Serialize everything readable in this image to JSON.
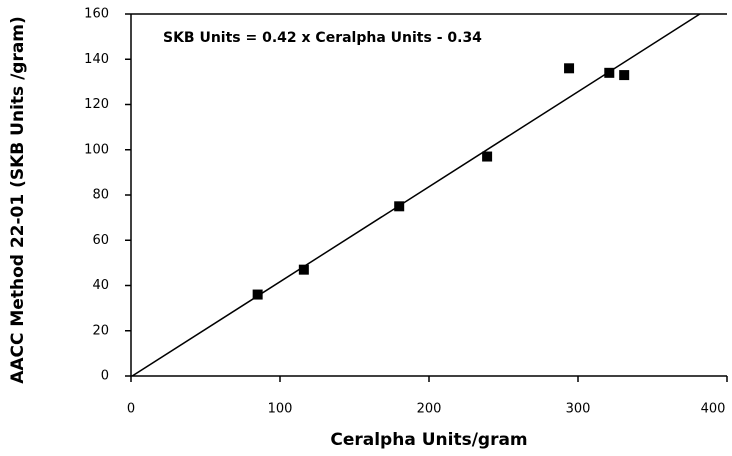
{
  "chart_data": {
    "type": "scatter",
    "x_label": "Ceralpha Units/gram",
    "y_label": "AACC Method 22-01 (SKB Units /gram)",
    "annotation": "SKB Units = 0.42 x Ceralpha Units - 0.34",
    "fit": {
      "slope": 0.42,
      "intercept": -0.34
    },
    "x": [
      85,
      116,
      180,
      239,
      294,
      321,
      331
    ],
    "values": [
      36,
      47,
      75,
      97,
      136,
      134,
      133
    ],
    "color": "#000000",
    "xlim": [
      0,
      400
    ],
    "xticks": [
      0,
      100,
      200,
      300,
      400
    ],
    "ylim": [
      0,
      160
    ],
    "yticks": [
      0,
      20,
      40,
      60,
      80,
      100,
      120,
      140,
      160
    ]
  }
}
